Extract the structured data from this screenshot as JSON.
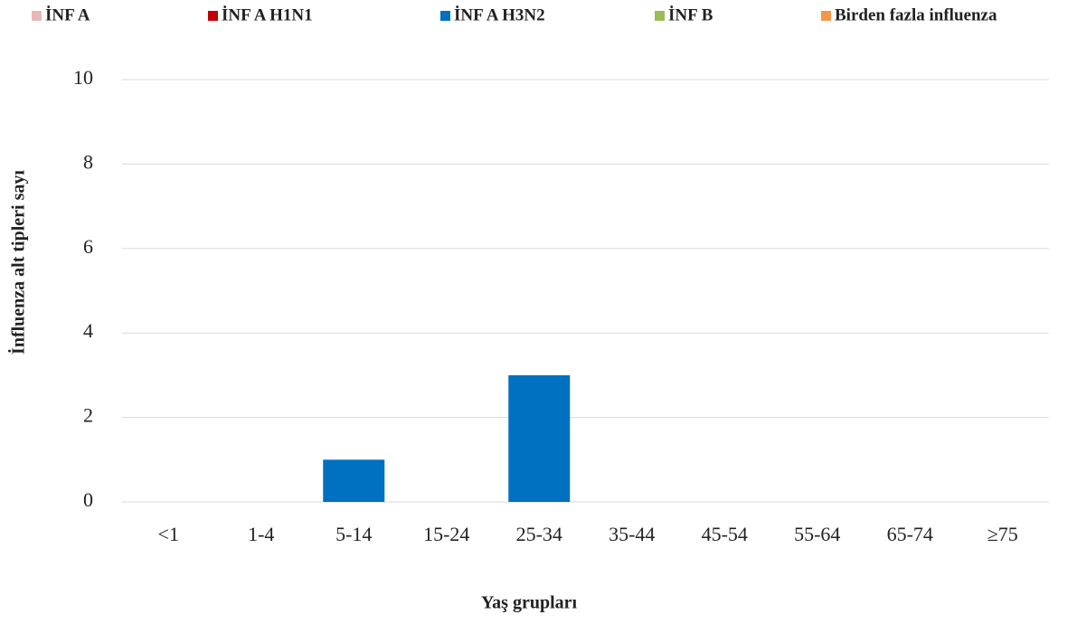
{
  "chart_data": {
    "type": "stacked_bar",
    "x_label": "Yaş grupları",
    "y_label": "İnfluenza alt tipleri sayı",
    "categories": [
      "<1",
      "1-4",
      "5-14",
      "15-24",
      "25-34",
      "35-44",
      "45-54",
      "55-64",
      "65-74",
      "≥75"
    ],
    "series": [
      {
        "name": "İNF A",
        "color": "#e6b9b8",
        "values": [
          0,
          0,
          0,
          0,
          0,
          0,
          0,
          0,
          0,
          0
        ]
      },
      {
        "name": "İNF A H1N1",
        "color": "#c00000",
        "values": [
          0,
          0,
          0,
          0,
          0,
          0,
          0,
          0,
          0,
          0
        ]
      },
      {
        "name": "İNF A H3N2",
        "color": "#0070c0",
        "values": [
          0,
          0,
          1,
          0,
          3,
          0,
          0,
          0,
          0,
          0
        ]
      },
      {
        "name": "İNF B",
        "color": "#9bbb59",
        "values": [
          0,
          0,
          0,
          0,
          0,
          0,
          0,
          0,
          0,
          0
        ]
      },
      {
        "name": "Birden fazla influenza",
        "color": "#f79646",
        "values": [
          0,
          0,
          0,
          0,
          0,
          0,
          0,
          0,
          0,
          0
        ]
      }
    ],
    "ylim": [
      0,
      10
    ],
    "yticks": [
      0,
      2,
      4,
      6,
      8,
      10
    ],
    "grid": true,
    "legend": "top"
  }
}
